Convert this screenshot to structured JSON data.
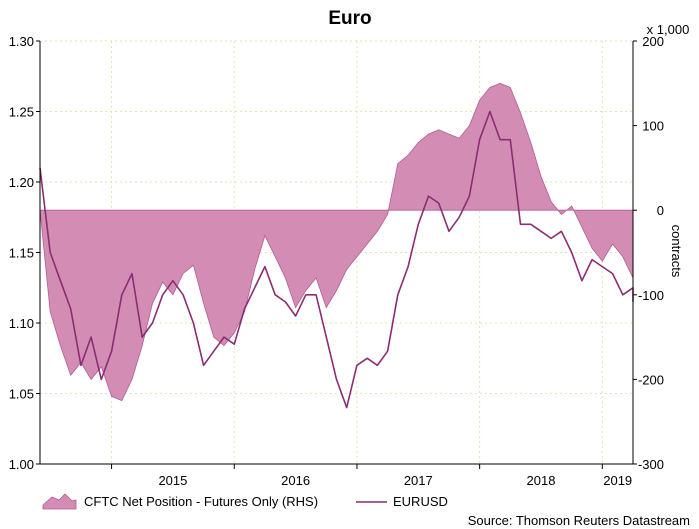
{
  "chart_data": {
    "type": "area+line",
    "title": "Euro",
    "left_axis": {
      "ylim": [
        1.0,
        1.3
      ],
      "ticks": [
        "1.00",
        "1.05",
        "1.10",
        "1.15",
        "1.20",
        "1.25",
        "1.30"
      ]
    },
    "right_axis": {
      "ylim": [
        -300,
        200
      ],
      "ticks": [
        "-300",
        "-200",
        "-100",
        "0",
        "100",
        "200"
      ],
      "label": "contracts",
      "unit": "x 1,000"
    },
    "x_axis": {
      "xlim": [
        "2014-06",
        "2019-04"
      ],
      "tick_labels": [
        "2015",
        "2016",
        "2017",
        "2018",
        "2019"
      ],
      "year_boundaries": [
        "2015-01",
        "2016-01",
        "2017-01",
        "2018-01",
        "2019-01"
      ]
    },
    "grid": true,
    "legend_position": "bottom",
    "source": "Source: Thomson Reuters Datastream",
    "colors": {
      "area": "#d38db5",
      "area_stroke": "#b45a8e",
      "line": "#8b2d72",
      "grid": "#e3e3b0"
    },
    "series": [
      {
        "name": "CFTC Net Position - Futures Only (RHS)",
        "axis": "right",
        "style": "area",
        "points": [
          [
            "2014-06",
            0
          ],
          [
            "2014-07",
            -120
          ],
          [
            "2014-08",
            -160
          ],
          [
            "2014-09",
            -195
          ],
          [
            "2014-10",
            -180
          ],
          [
            "2014-11",
            -200
          ],
          [
            "2014-12",
            -185
          ],
          [
            "2015-01",
            -220
          ],
          [
            "2015-02",
            -225
          ],
          [
            "2015-03",
            -200
          ],
          [
            "2015-04",
            -160
          ],
          [
            "2015-05",
            -110
          ],
          [
            "2015-06",
            -85
          ],
          [
            "2015-07",
            -100
          ],
          [
            "2015-08",
            -75
          ],
          [
            "2015-09",
            -65
          ],
          [
            "2015-10",
            -110
          ],
          [
            "2015-11",
            -150
          ],
          [
            "2015-12",
            -160
          ],
          [
            "2016-01",
            -145
          ],
          [
            "2016-02",
            -120
          ],
          [
            "2016-03",
            -70
          ],
          [
            "2016-04",
            -30
          ],
          [
            "2016-05",
            -55
          ],
          [
            "2016-06",
            -80
          ],
          [
            "2016-07",
            -115
          ],
          [
            "2016-08",
            -95
          ],
          [
            "2016-09",
            -80
          ],
          [
            "2016-10",
            -115
          ],
          [
            "2016-11",
            -95
          ],
          [
            "2016-12",
            -70
          ],
          [
            "2017-01",
            -55
          ],
          [
            "2017-02",
            -40
          ],
          [
            "2017-03",
            -25
          ],
          [
            "2017-04",
            -5
          ],
          [
            "2017-05",
            55
          ],
          [
            "2017-06",
            65
          ],
          [
            "2017-07",
            80
          ],
          [
            "2017-08",
            90
          ],
          [
            "2017-09",
            95
          ],
          [
            "2017-10",
            90
          ],
          [
            "2017-11",
            85
          ],
          [
            "2017-12",
            100
          ],
          [
            "2018-01",
            130
          ],
          [
            "2018-02",
            145
          ],
          [
            "2018-03",
            150
          ],
          [
            "2018-04",
            145
          ],
          [
            "2018-05",
            115
          ],
          [
            "2018-06",
            80
          ],
          [
            "2018-07",
            40
          ],
          [
            "2018-08",
            10
          ],
          [
            "2018-09",
            -5
          ],
          [
            "2018-10",
            5
          ],
          [
            "2018-11",
            -20
          ],
          [
            "2018-12",
            -45
          ],
          [
            "2019-01",
            -60
          ],
          [
            "2019-02",
            -40
          ],
          [
            "2019-03",
            -55
          ],
          [
            "2019-04",
            -80
          ],
          [
            "2019-05",
            -100
          ]
        ]
      },
      {
        "name": "EURUSD",
        "axis": "left",
        "style": "line",
        "points": [
          [
            "2014-06",
            1.21
          ],
          [
            "2014-07",
            1.15
          ],
          [
            "2014-08",
            1.13
          ],
          [
            "2014-09",
            1.11
          ],
          [
            "2014-10",
            1.07
          ],
          [
            "2014-11",
            1.09
          ],
          [
            "2014-12",
            1.06
          ],
          [
            "2015-01",
            1.08
          ],
          [
            "2015-02",
            1.12
          ],
          [
            "2015-03",
            1.135
          ],
          [
            "2015-04",
            1.09
          ],
          [
            "2015-05",
            1.1
          ],
          [
            "2015-06",
            1.12
          ],
          [
            "2015-07",
            1.13
          ],
          [
            "2015-08",
            1.12
          ],
          [
            "2015-09",
            1.1
          ],
          [
            "2015-10",
            1.07
          ],
          [
            "2015-11",
            1.08
          ],
          [
            "2015-12",
            1.09
          ],
          [
            "2016-01",
            1.085
          ],
          [
            "2016-02",
            1.11
          ],
          [
            "2016-03",
            1.125
          ],
          [
            "2016-04",
            1.14
          ],
          [
            "2016-05",
            1.12
          ],
          [
            "2016-06",
            1.115
          ],
          [
            "2016-07",
            1.105
          ],
          [
            "2016-08",
            1.12
          ],
          [
            "2016-09",
            1.12
          ],
          [
            "2016-10",
            1.09
          ],
          [
            "2016-11",
            1.06
          ],
          [
            "2016-12",
            1.04
          ],
          [
            "2017-01",
            1.07
          ],
          [
            "2017-02",
            1.075
          ],
          [
            "2017-03",
            1.07
          ],
          [
            "2017-04",
            1.08
          ],
          [
            "2017-05",
            1.12
          ],
          [
            "2017-06",
            1.14
          ],
          [
            "2017-07",
            1.17
          ],
          [
            "2017-08",
            1.19
          ],
          [
            "2017-09",
            1.185
          ],
          [
            "2017-10",
            1.165
          ],
          [
            "2017-11",
            1.175
          ],
          [
            "2017-12",
            1.19
          ],
          [
            "2018-01",
            1.23
          ],
          [
            "2018-02",
            1.25
          ],
          [
            "2018-03",
            1.23
          ],
          [
            "2018-04",
            1.23
          ],
          [
            "2018-05",
            1.17
          ],
          [
            "2018-06",
            1.17
          ],
          [
            "2018-07",
            1.165
          ],
          [
            "2018-08",
            1.16
          ],
          [
            "2018-09",
            1.165
          ],
          [
            "2018-10",
            1.15
          ],
          [
            "2018-11",
            1.13
          ],
          [
            "2018-12",
            1.145
          ],
          [
            "2019-01",
            1.14
          ],
          [
            "2019-02",
            1.135
          ],
          [
            "2019-03",
            1.12
          ],
          [
            "2019-04",
            1.125
          ],
          [
            "2019-05",
            1.115
          ]
        ]
      }
    ]
  }
}
